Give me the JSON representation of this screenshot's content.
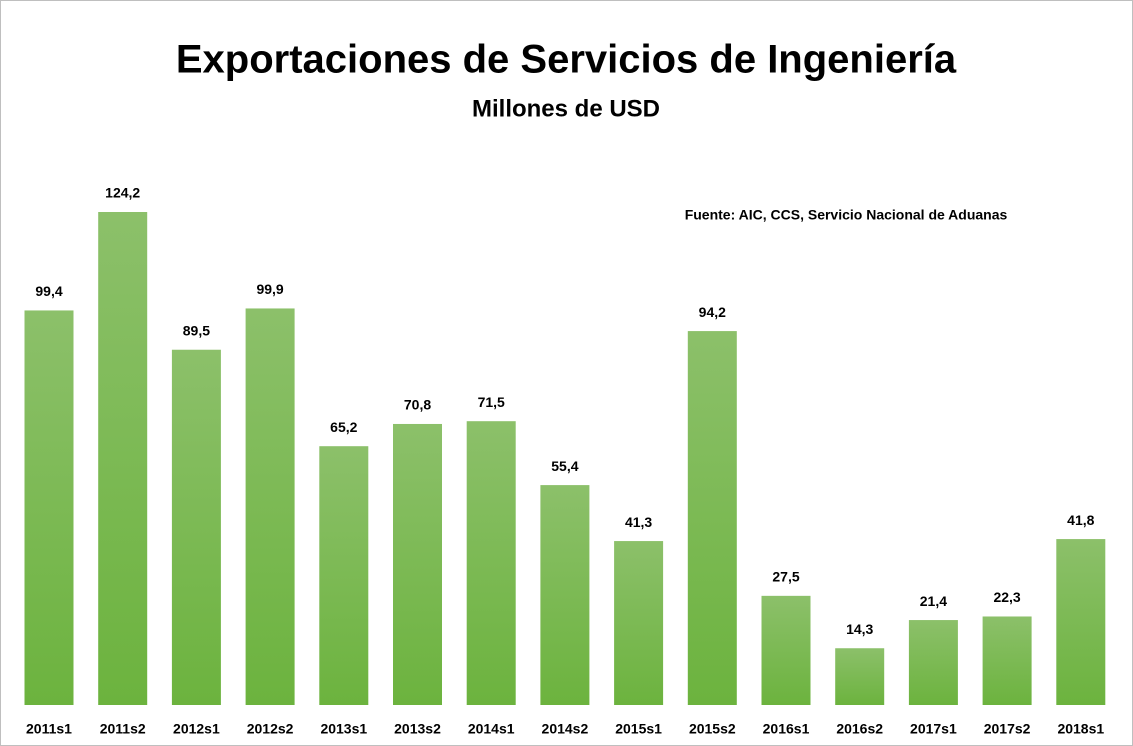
{
  "chart_data": {
    "type": "bar",
    "title": "Exportaciones de Servicios de Ingeniería",
    "subtitle": "Millones de USD",
    "annotation": "Fuente: AIC, CCS, Servicio Nacional de Aduanas",
    "categories": [
      "2011s1",
      "2011s2",
      "2012s1",
      "2012s2",
      "2013s1",
      "2013s2",
      "2014s1",
      "2014s2",
      "2015s1",
      "2015s2",
      "2016s1",
      "2016s2",
      "2017s1",
      "2017s2",
      "2018s1"
    ],
    "values": [
      99.4,
      124.2,
      89.5,
      99.9,
      65.2,
      70.8,
      71.5,
      55.4,
      41.3,
      94.2,
      27.5,
      14.3,
      21.4,
      22.3,
      41.8
    ],
    "value_labels": [
      "99,4",
      "124,2",
      "89,5",
      "99,9",
      "65,2",
      "70,8",
      "71,5",
      "55,4",
      "41,3",
      "94,2",
      "27,5",
      "14,3",
      "21,4",
      "22,3",
      "41,8"
    ],
    "color": "#70b443"
  }
}
